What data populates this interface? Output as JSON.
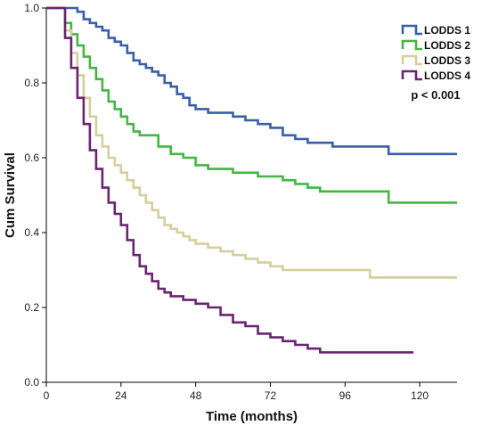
{
  "chart_data": {
    "type": "line",
    "step": true,
    "xlabel": "Time (months)",
    "ylabel": "Cum Survival",
    "xlim": [
      0,
      132
    ],
    "ylim": [
      0,
      1
    ],
    "xticks": [
      0,
      24,
      48,
      72,
      96,
      120
    ],
    "yticks": [
      0.0,
      0.2,
      0.4,
      0.6,
      0.8,
      1.0
    ],
    "xtick_labels": [
      "0",
      "24",
      "48",
      "72",
      "96",
      "120"
    ],
    "ytick_labels": [
      "0.0",
      "0.2",
      "0.4",
      "0.6",
      "0.8",
      "1.0"
    ],
    "grid": false,
    "legend_position": "top-right",
    "annotation": "p < 0.001",
    "series": [
      {
        "name": "LODDS 1",
        "color": "#3a5ea8",
        "points": [
          [
            0,
            1.0
          ],
          [
            4,
            1.0
          ],
          [
            8,
            1.0
          ],
          [
            10,
            0.99
          ],
          [
            12,
            0.97
          ],
          [
            14,
            0.96
          ],
          [
            16,
            0.95
          ],
          [
            18,
            0.94
          ],
          [
            20,
            0.92
          ],
          [
            22,
            0.91
          ],
          [
            24,
            0.9
          ],
          [
            26,
            0.88
          ],
          [
            28,
            0.86
          ],
          [
            30,
            0.85
          ],
          [
            32,
            0.84
          ],
          [
            34,
            0.83
          ],
          [
            36,
            0.82
          ],
          [
            38,
            0.8
          ],
          [
            40,
            0.79
          ],
          [
            42,
            0.77
          ],
          [
            44,
            0.76
          ],
          [
            46,
            0.74
          ],
          [
            48,
            0.73
          ],
          [
            52,
            0.72
          ],
          [
            56,
            0.72
          ],
          [
            60,
            0.71
          ],
          [
            64,
            0.7
          ],
          [
            68,
            0.69
          ],
          [
            72,
            0.68
          ],
          [
            76,
            0.66
          ],
          [
            80,
            0.65
          ],
          [
            84,
            0.64
          ],
          [
            88,
            0.64
          ],
          [
            92,
            0.63
          ],
          [
            96,
            0.63
          ],
          [
            100,
            0.63
          ],
          [
            104,
            0.63
          ],
          [
            110,
            0.61
          ],
          [
            120,
            0.61
          ],
          [
            132,
            0.61
          ]
        ]
      },
      {
        "name": "LODDS 2",
        "color": "#45b545",
        "points": [
          [
            0,
            1.0
          ],
          [
            4,
            1.0
          ],
          [
            6,
            0.96
          ],
          [
            8,
            0.93
          ],
          [
            10,
            0.9
          ],
          [
            12,
            0.87
          ],
          [
            14,
            0.84
          ],
          [
            16,
            0.81
          ],
          [
            18,
            0.78
          ],
          [
            20,
            0.75
          ],
          [
            22,
            0.73
          ],
          [
            24,
            0.71
          ],
          [
            26,
            0.69
          ],
          [
            28,
            0.67
          ],
          [
            30,
            0.66
          ],
          [
            34,
            0.66
          ],
          [
            36,
            0.63
          ],
          [
            40,
            0.61
          ],
          [
            44,
            0.6
          ],
          [
            48,
            0.58
          ],
          [
            52,
            0.57
          ],
          [
            56,
            0.57
          ],
          [
            60,
            0.56
          ],
          [
            64,
            0.56
          ],
          [
            68,
            0.55
          ],
          [
            72,
            0.55
          ],
          [
            76,
            0.54
          ],
          [
            80,
            0.53
          ],
          [
            84,
            0.52
          ],
          [
            88,
            0.51
          ],
          [
            96,
            0.51
          ],
          [
            104,
            0.51
          ],
          [
            110,
            0.48
          ],
          [
            120,
            0.48
          ],
          [
            132,
            0.48
          ]
        ]
      },
      {
        "name": "LODDS 3",
        "color": "#d4cf9c",
        "points": [
          [
            0,
            1.0
          ],
          [
            4,
            1.0
          ],
          [
            6,
            0.94
          ],
          [
            8,
            0.88
          ],
          [
            10,
            0.82
          ],
          [
            12,
            0.76
          ],
          [
            14,
            0.71
          ],
          [
            16,
            0.66
          ],
          [
            18,
            0.63
          ],
          [
            20,
            0.6
          ],
          [
            22,
            0.58
          ],
          [
            24,
            0.56
          ],
          [
            26,
            0.54
          ],
          [
            28,
            0.52
          ],
          [
            30,
            0.5
          ],
          [
            32,
            0.48
          ],
          [
            34,
            0.46
          ],
          [
            36,
            0.44
          ],
          [
            38,
            0.42
          ],
          [
            40,
            0.41
          ],
          [
            42,
            0.4
          ],
          [
            44,
            0.39
          ],
          [
            46,
            0.38
          ],
          [
            48,
            0.37
          ],
          [
            52,
            0.36
          ],
          [
            56,
            0.35
          ],
          [
            60,
            0.34
          ],
          [
            64,
            0.33
          ],
          [
            68,
            0.32
          ],
          [
            72,
            0.31
          ],
          [
            76,
            0.3
          ],
          [
            84,
            0.3
          ],
          [
            92,
            0.3
          ],
          [
            100,
            0.3
          ],
          [
            104,
            0.28
          ],
          [
            110,
            0.28
          ],
          [
            120,
            0.28
          ],
          [
            132,
            0.28
          ]
        ]
      },
      {
        "name": "LODDS 4",
        "color": "#6b2470",
        "points": [
          [
            0,
            1.0
          ],
          [
            4,
            1.0
          ],
          [
            6,
            0.92
          ],
          [
            8,
            0.84
          ],
          [
            10,
            0.76
          ],
          [
            12,
            0.69
          ],
          [
            14,
            0.62
          ],
          [
            16,
            0.57
          ],
          [
            18,
            0.52
          ],
          [
            20,
            0.48
          ],
          [
            22,
            0.45
          ],
          [
            24,
            0.42
          ],
          [
            26,
            0.38
          ],
          [
            28,
            0.34
          ],
          [
            30,
            0.31
          ],
          [
            32,
            0.29
          ],
          [
            34,
            0.27
          ],
          [
            36,
            0.25
          ],
          [
            38,
            0.24
          ],
          [
            40,
            0.23
          ],
          [
            44,
            0.22
          ],
          [
            48,
            0.21
          ],
          [
            52,
            0.2
          ],
          [
            56,
            0.18
          ],
          [
            60,
            0.16
          ],
          [
            64,
            0.15
          ],
          [
            68,
            0.13
          ],
          [
            72,
            0.12
          ],
          [
            76,
            0.11
          ],
          [
            80,
            0.1
          ],
          [
            84,
            0.09
          ],
          [
            88,
            0.08
          ],
          [
            96,
            0.08
          ],
          [
            104,
            0.08
          ],
          [
            112,
            0.08
          ],
          [
            118,
            0.08
          ]
        ]
      }
    ]
  }
}
